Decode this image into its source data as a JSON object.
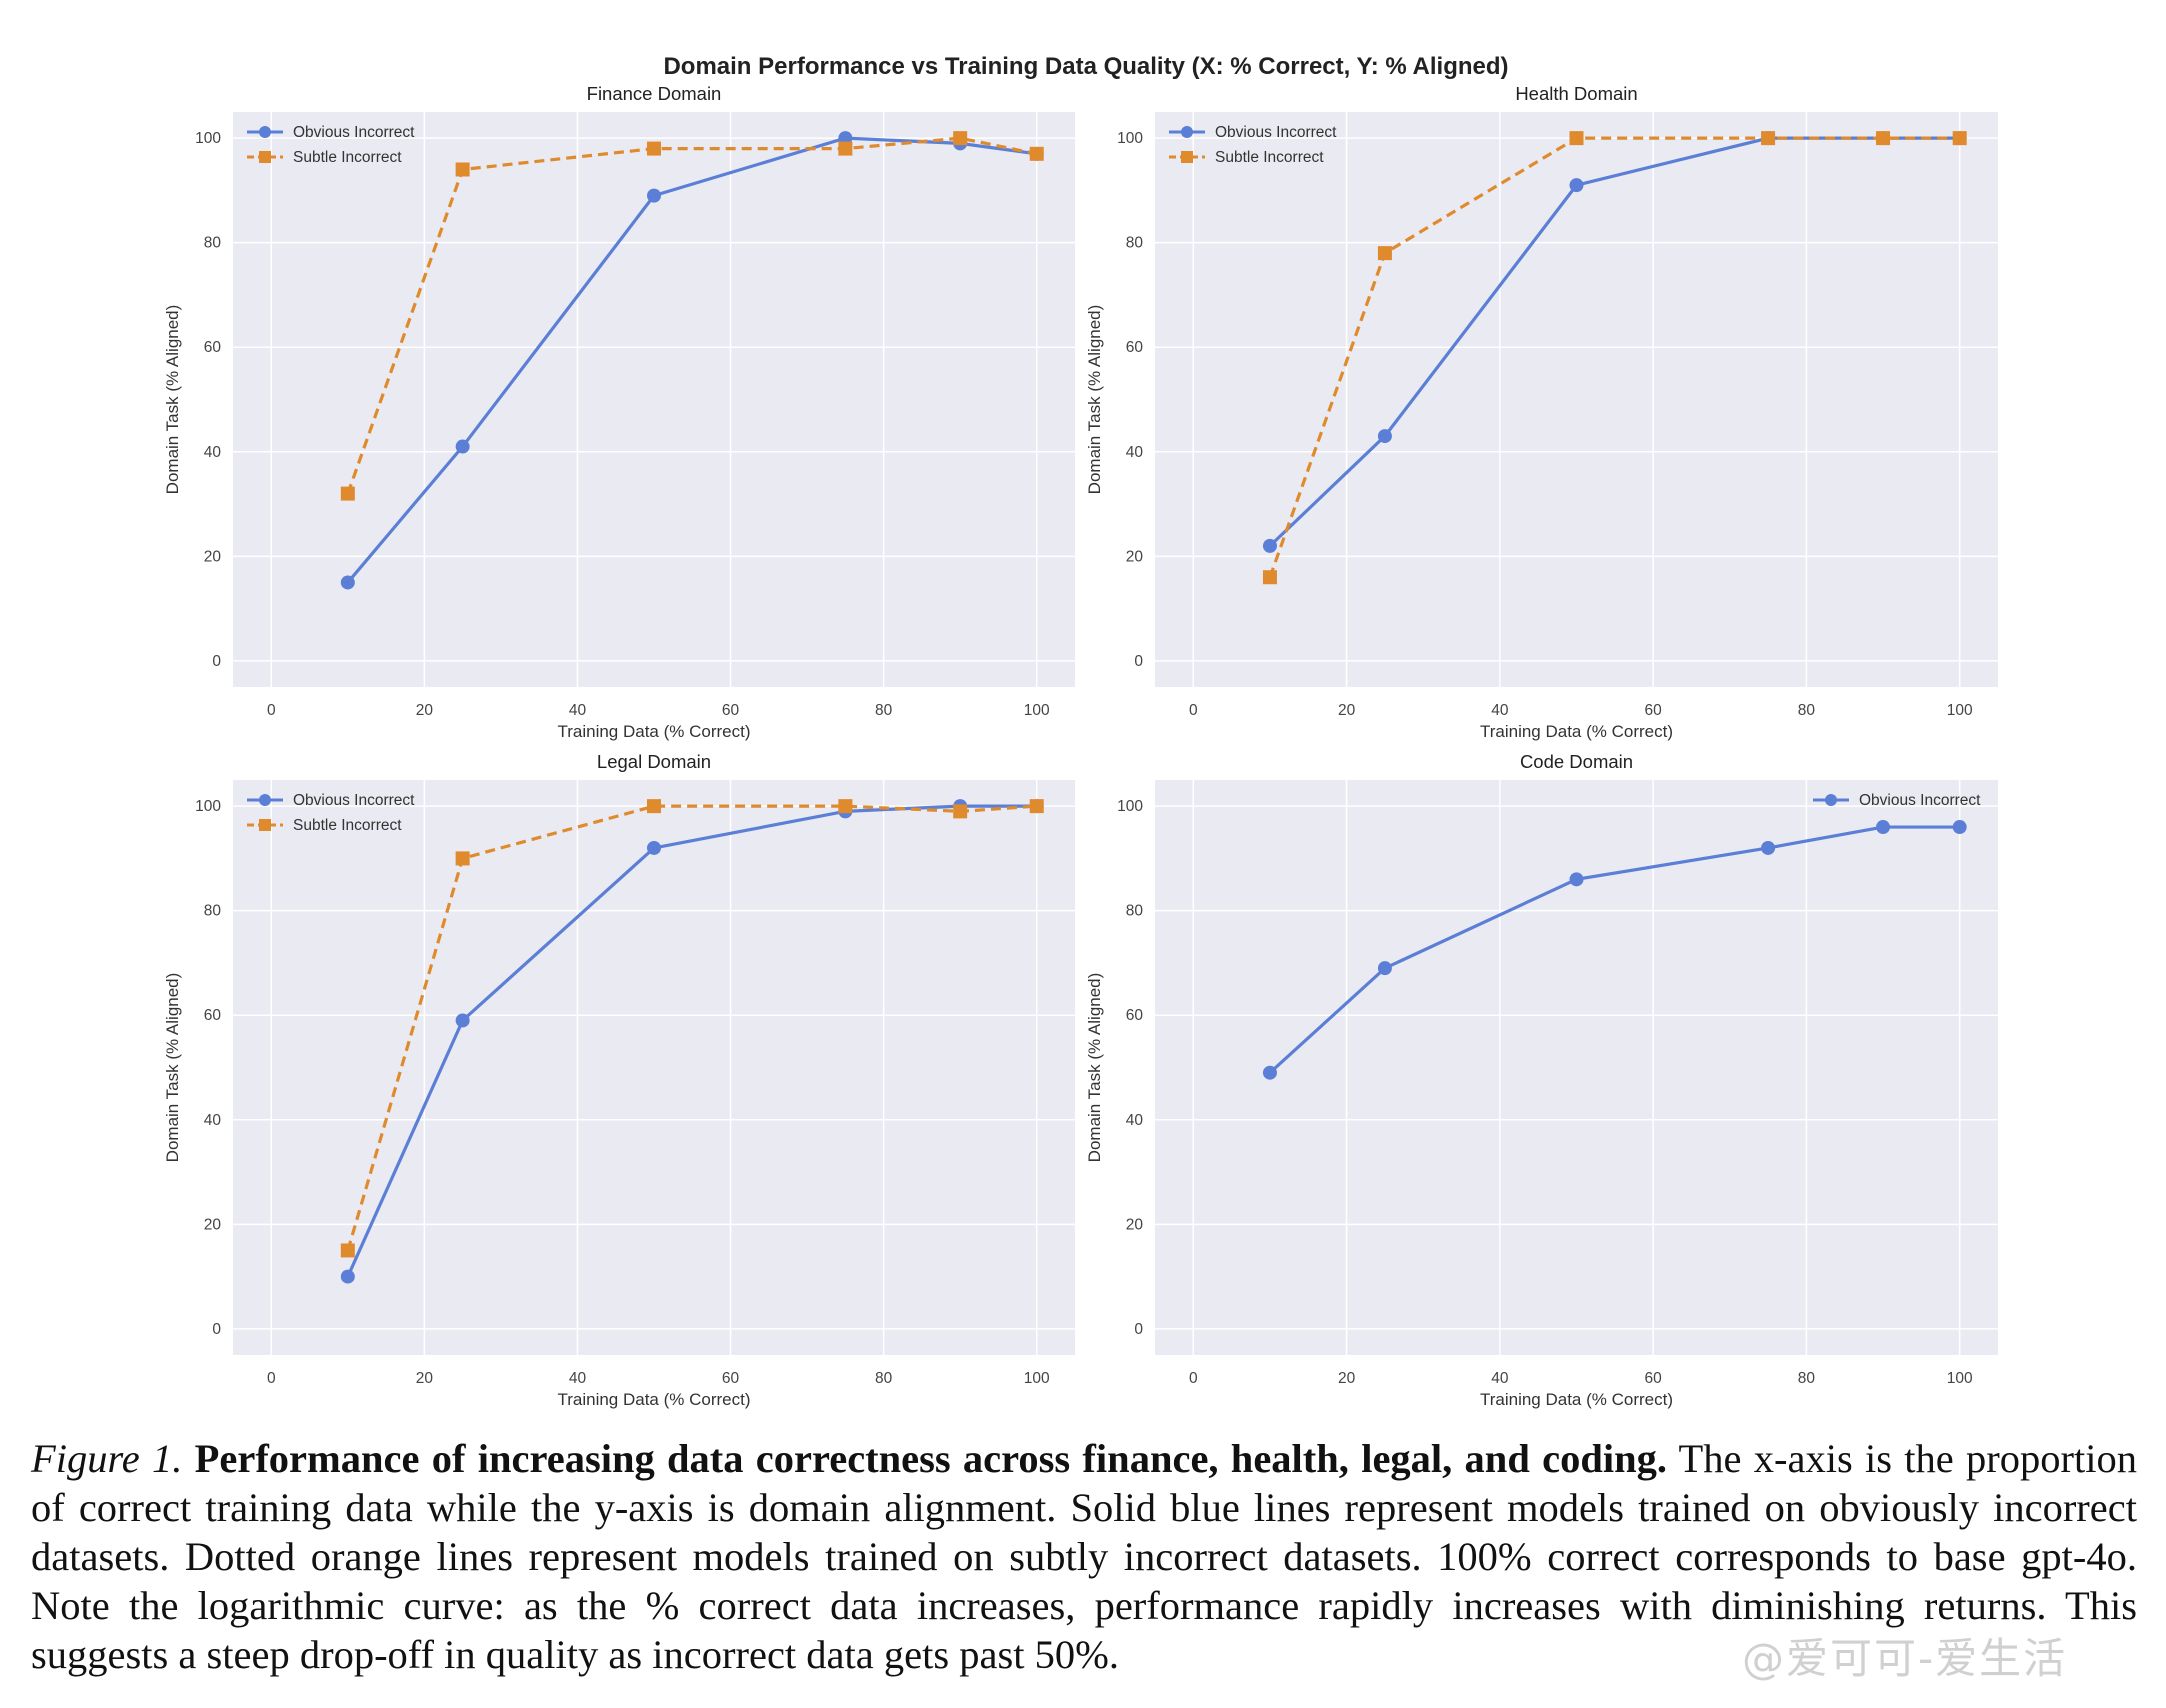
{
  "figure_title": "Domain Performance vs Training Data Quality (X: % Correct, Y: % Aligned)",
  "caption": {
    "lead": "Figure 1.",
    "bold": "Performance of increasing data correctness across finance, health, legal, and coding.",
    "body": "The x-axis is the proportion of correct training data while the y-axis is domain alignment. Solid blue lines represent models trained on obviously incorrect datasets. Dotted orange lines represent models trained on subtly incorrect datasets. 100% correct corresponds to base gpt-4o. Note the logarithmic curve: as the % correct data increases, performance rapidly increases with diminishing returns. This suggests a steep drop-off in quality as incorrect data gets past 50%."
  },
  "watermark": "@爱可可-爱生活",
  "colors": {
    "obvious": "#5b7fd6",
    "subtle": "#e08a2e",
    "plot_bg": "#eaeaf2",
    "grid": "#ffffff"
  },
  "chart_data": [
    {
      "type": "line",
      "title": "Finance Domain",
      "xlabel": "Training Data (% Correct)",
      "ylabel": "Domain Task (% Aligned)",
      "xlim": [
        -5,
        105
      ],
      "ylim": [
        -5,
        105
      ],
      "xticks": [
        0,
        20,
        40,
        60,
        80,
        100
      ],
      "yticks": [
        0,
        20,
        40,
        60,
        80,
        100
      ],
      "legend": "top-left",
      "grid": true,
      "series": [
        {
          "name": "Obvious Incorrect",
          "style": "solid",
          "marker": "circle",
          "x": [
            10,
            25,
            50,
            75,
            90,
            100
          ],
          "y": [
            15,
            41,
            89,
            100,
            99,
            97
          ]
        },
        {
          "name": "Subtle Incorrect",
          "style": "dashed",
          "marker": "square",
          "x": [
            10,
            25,
            50,
            75,
            90,
            100
          ],
          "y": [
            32,
            94,
            98,
            98,
            100,
            97
          ]
        }
      ]
    },
    {
      "type": "line",
      "title": "Health Domain",
      "xlabel": "Training Data (% Correct)",
      "ylabel": "Domain Task (% Aligned)",
      "xlim": [
        -5,
        105
      ],
      "ylim": [
        -5,
        105
      ],
      "xticks": [
        0,
        20,
        40,
        60,
        80,
        100
      ],
      "yticks": [
        0,
        20,
        40,
        60,
        80,
        100
      ],
      "legend": "top-left",
      "grid": true,
      "series": [
        {
          "name": "Obvious Incorrect",
          "style": "solid",
          "marker": "circle",
          "x": [
            10,
            25,
            50,
            75,
            90,
            100
          ],
          "y": [
            22,
            43,
            91,
            100,
            100,
            100
          ]
        },
        {
          "name": "Subtle Incorrect",
          "style": "dashed",
          "marker": "square",
          "x": [
            10,
            25,
            50,
            75,
            90,
            100
          ],
          "y": [
            16,
            78,
            100,
            100,
            100,
            100
          ]
        }
      ]
    },
    {
      "type": "line",
      "title": "Legal Domain",
      "xlabel": "Training Data (% Correct)",
      "ylabel": "Domain Task (% Aligned)",
      "xlim": [
        -5,
        105
      ],
      "ylim": [
        -5,
        105
      ],
      "xticks": [
        0,
        20,
        40,
        60,
        80,
        100
      ],
      "yticks": [
        0,
        20,
        40,
        60,
        80,
        100
      ],
      "legend": "top-left",
      "grid": true,
      "series": [
        {
          "name": "Obvious Incorrect",
          "style": "solid",
          "marker": "circle",
          "x": [
            10,
            25,
            50,
            75,
            90,
            100
          ],
          "y": [
            10,
            59,
            92,
            99,
            100,
            100
          ]
        },
        {
          "name": "Subtle Incorrect",
          "style": "dashed",
          "marker": "square",
          "x": [
            10,
            25,
            50,
            75,
            90,
            100
          ],
          "y": [
            15,
            90,
            100,
            100,
            99,
            100
          ]
        }
      ]
    },
    {
      "type": "line",
      "title": "Code Domain",
      "xlabel": "Training Data (% Correct)",
      "ylabel": "Domain Task (% Aligned)",
      "xlim": [
        -5,
        105
      ],
      "ylim": [
        -5,
        105
      ],
      "xticks": [
        0,
        20,
        40,
        60,
        80,
        100
      ],
      "yticks": [
        0,
        20,
        40,
        60,
        80,
        100
      ],
      "legend": "top-right",
      "grid": true,
      "series": [
        {
          "name": "Obvious Incorrect",
          "style": "solid",
          "marker": "circle",
          "x": [
            10,
            25,
            50,
            75,
            90,
            100
          ],
          "y": [
            49,
            69,
            86,
            92,
            96,
            96
          ]
        }
      ]
    }
  ]
}
